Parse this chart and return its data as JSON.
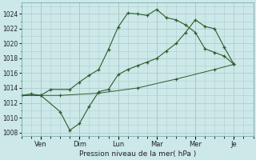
{
  "background_color": "#cce8e8",
  "grid_color": "#b0cccc",
  "line_color": "#2d5c2d",
  "ylabel": "Pression niveau de la mer( hPa )",
  "ylim": [
    1007.5,
    1025.5
  ],
  "yticks": [
    1008,
    1010,
    1012,
    1014,
    1016,
    1018,
    1020,
    1022,
    1024
  ],
  "day_labels": [
    "Ven",
    "Dim",
    "Lun",
    "Mar",
    "Mer",
    "Je"
  ],
  "day_positions": [
    1,
    3,
    5,
    7,
    9,
    11
  ],
  "xlim": [
    0,
    12
  ],
  "series1_x": [
    0,
    0.5,
    1.0,
    1.5,
    2.5,
    3.0,
    3.5,
    4.0,
    4.5,
    5.0,
    5.5,
    6.0,
    6.5,
    7.0,
    7.5,
    8.0,
    8.5,
    9.0,
    9.5,
    10.0,
    10.5,
    11.0
  ],
  "series1_y": [
    1013.0,
    1013.2,
    1013.0,
    1013.8,
    1013.8,
    1014.8,
    1015.7,
    1016.5,
    1019.2,
    1022.2,
    1024.1,
    1024.0,
    1023.8,
    1024.6,
    1023.5,
    1023.2,
    1022.5,
    1021.5,
    1019.3,
    1018.8,
    1018.3,
    1017.2
  ],
  "series2_x": [
    0,
    1.0,
    2.0,
    2.5,
    3.0,
    3.5,
    4.0,
    4.5,
    5.0,
    5.5,
    6.0,
    6.5,
    7.0,
    7.5,
    8.0,
    8.5,
    9.0,
    9.5,
    10.0,
    10.5,
    11.0
  ],
  "series2_y": [
    1013.0,
    1013.0,
    1010.8,
    1008.3,
    1009.2,
    1011.5,
    1013.5,
    1013.8,
    1015.8,
    1016.5,
    1017.0,
    1017.5,
    1018.0,
    1019.0,
    1020.0,
    1021.5,
    1023.2,
    1022.3,
    1022.0,
    1019.5,
    1017.2
  ],
  "series3_x": [
    0,
    2.0,
    4.0,
    6.0,
    8.0,
    10.0,
    11.0
  ],
  "series3_y": [
    1013.0,
    1013.0,
    1013.3,
    1014.0,
    1015.2,
    1016.5,
    1017.2
  ]
}
